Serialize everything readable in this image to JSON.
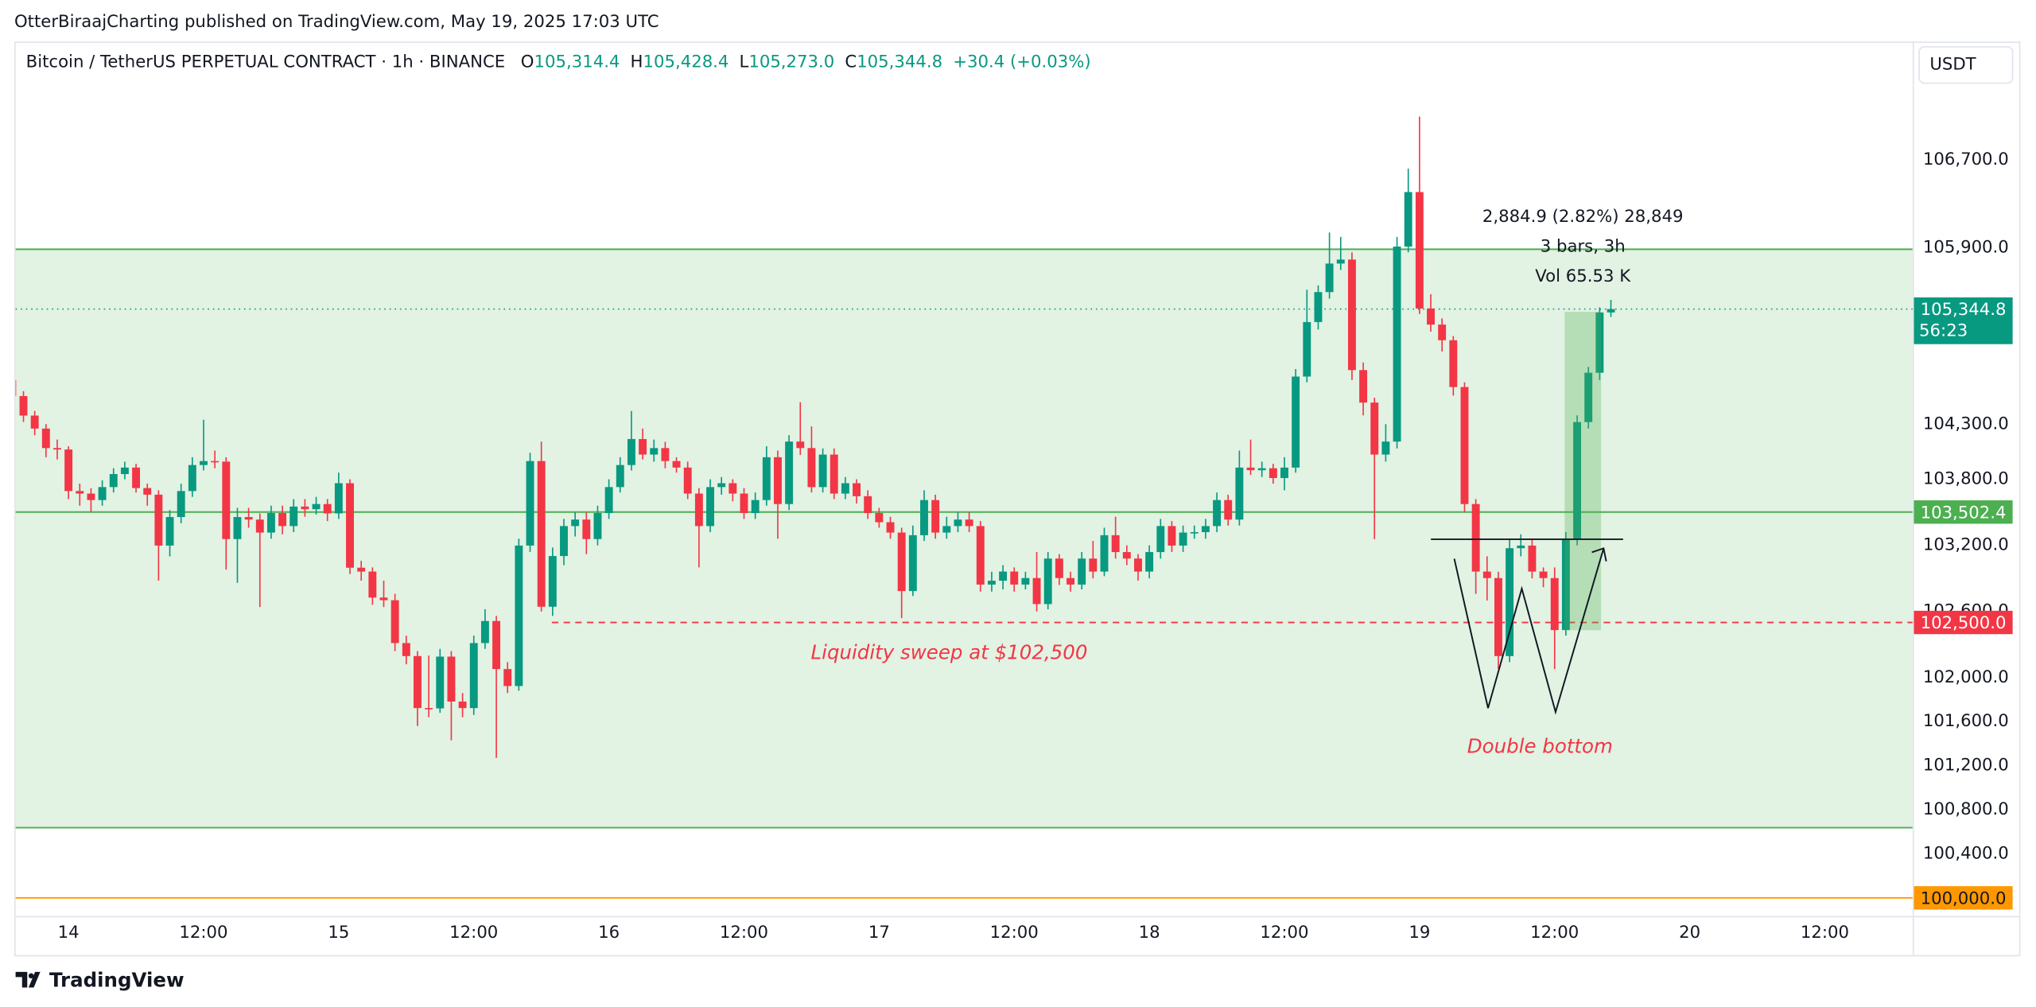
{
  "published": "OtterBiraajCharting published on TradingView.com, May 19, 2025 17:03 UTC",
  "brand": "TradingView",
  "chart_data": {
    "type": "candlestick",
    "title": "Bitcoin / TetherUS PERPETUAL CONTRACT · 1h · BINANCE",
    "ohlc": [
      {
        "key": "O",
        "value": "105,314.4"
      },
      {
        "key": "H",
        "value": "105,428.4"
      },
      {
        "key": "L",
        "value": "105,273.0"
      },
      {
        "key": "C",
        "value": "105,344.8"
      }
    ],
    "change": "+30.4 (+0.03%)",
    "currency": "USDT",
    "up_color": "#089981",
    "down_color": "#f23645",
    "xlim": [
      0.3,
      168.8
    ],
    "xticks": [
      {
        "value": 5,
        "label": "14"
      },
      {
        "value": 17,
        "label": "12:00"
      },
      {
        "value": 29,
        "label": "15"
      },
      {
        "value": 41,
        "label": "12:00"
      },
      {
        "value": 53,
        "label": "16"
      },
      {
        "value": 65,
        "label": "12:00"
      },
      {
        "value": 77,
        "label": "17"
      },
      {
        "value": 89,
        "label": "12:00"
      },
      {
        "value": 101,
        "label": "18"
      },
      {
        "value": 113,
        "label": "12:00"
      },
      {
        "value": 125,
        "label": "19"
      },
      {
        "value": 137,
        "label": "12:00"
      },
      {
        "value": 149,
        "label": "20"
      },
      {
        "value": 161,
        "label": "12:00"
      }
    ],
    "ylim": [
      99835,
      107773
    ],
    "yticks": [
      {
        "value": 100400,
        "label": "100,400.0"
      },
      {
        "value": 100800,
        "label": "100,800.0"
      },
      {
        "value": 101200,
        "label": "101,200.0"
      },
      {
        "value": 101600,
        "label": "101,600.0"
      },
      {
        "value": 102000,
        "label": "102,000.0"
      },
      {
        "value": 102600,
        "label": "102,600.0"
      },
      {
        "value": 103200,
        "label": "103,200.0"
      },
      {
        "value": 103800,
        "label": "103,800.0"
      },
      {
        "value": 104300,
        "label": "104,300.0"
      },
      {
        "value": 105900,
        "label": "105,900.0"
      },
      {
        "value": 106700,
        "label": "106,700.0"
      }
    ],
    "grid": false,
    "zone": [
      100637,
      105888
    ],
    "zone_color": "#4caf50",
    "levels": [
      {
        "value": 103502.4,
        "label": "103,502.4",
        "color": "#4caf50",
        "dashed": false
      },
      {
        "value": 102500,
        "label": "102,500.0",
        "color": "#f23645",
        "dashed": true
      },
      {
        "value": 100000,
        "label": "100,000.0",
        "color": "#ff9800",
        "dashed": false
      }
    ],
    "last_label": "105,344.8",
    "countdown": "56:23",
    "annotations": {
      "sweep": "Liquidity sweep at $102,500",
      "pattern": "Double bottom",
      "measure": "2,884.9 (2.82%) 28,849",
      "bars": "3 bars, 3h",
      "volume": "Vol 65.53 K"
    },
    "candles": [
      [
        104700,
        104780,
        104480,
        104555
      ],
      [
        104555,
        104600,
        104320,
        104378
      ],
      [
        104378,
        104420,
        104200,
        104260
      ],
      [
        104260,
        104300,
        104000,
        104083
      ],
      [
        104083,
        104160,
        103980,
        104070
      ],
      [
        104070,
        104100,
        103620,
        103693
      ],
      [
        103693,
        103760,
        103560,
        103670
      ],
      [
        103670,
        103720,
        103500,
        103611
      ],
      [
        103611,
        103790,
        103560,
        103729
      ],
      [
        103729,
        103900,
        103680,
        103847
      ],
      [
        103847,
        103960,
        103800,
        103906
      ],
      [
        103906,
        103940,
        103680,
        103720
      ],
      [
        103720,
        103760,
        103560,
        103660
      ],
      [
        103660,
        103700,
        102880,
        103198
      ],
      [
        103198,
        103520,
        103100,
        103457
      ],
      [
        103457,
        103760,
        103400,
        103693
      ],
      [
        103693,
        104000,
        103640,
        103929
      ],
      [
        103929,
        104340,
        103880,
        103965
      ],
      [
        103965,
        104060,
        103900,
        103960
      ],
      [
        103960,
        104000,
        102980,
        103257
      ],
      [
        103257,
        103540,
        102860,
        103457
      ],
      [
        103457,
        103540,
        103360,
        103434
      ],
      [
        103434,
        103490,
        102640,
        103316
      ],
      [
        103316,
        103560,
        103260,
        103493
      ],
      [
        103493,
        103560,
        103300,
        103375
      ],
      [
        103375,
        103620,
        103320,
        103552
      ],
      [
        103552,
        103620,
        103460,
        103528
      ],
      [
        103528,
        103640,
        103480,
        103575
      ],
      [
        103575,
        103620,
        103420,
        103490
      ],
      [
        103490,
        103860,
        103440,
        103764
      ],
      [
        103764,
        103800,
        102940,
        102997
      ],
      [
        102997,
        103060,
        102880,
        102962
      ],
      [
        102962,
        103000,
        102660,
        102726
      ],
      [
        102726,
        102880,
        102640,
        102702
      ],
      [
        102702,
        102760,
        102240,
        102313
      ],
      [
        102313,
        102380,
        102120,
        102195
      ],
      [
        102195,
        102240,
        101560,
        101723
      ],
      [
        101723,
        102200,
        101640,
        101720
      ],
      [
        101720,
        102260,
        101680,
        102190
      ],
      [
        102190,
        102240,
        101430,
        101782
      ],
      [
        101782,
        101860,
        101640,
        101723
      ],
      [
        101723,
        102380,
        101660,
        102313
      ],
      [
        102313,
        102620,
        102260,
        102513
      ],
      [
        102513,
        102560,
        101270,
        102077
      ],
      [
        102077,
        102140,
        101860,
        101923
      ],
      [
        101923,
        103260,
        101880,
        103198
      ],
      [
        103198,
        104040,
        103140,
        103965
      ],
      [
        103965,
        104142,
        102600,
        102643
      ],
      [
        102643,
        103180,
        102560,
        103103
      ],
      [
        103103,
        103440,
        103020,
        103375
      ],
      [
        103375,
        103500,
        103280,
        103434
      ],
      [
        103434,
        103500,
        103120,
        103257
      ],
      [
        103257,
        103560,
        103200,
        103493
      ],
      [
        103493,
        103800,
        103440,
        103729
      ],
      [
        103729,
        104000,
        103680,
        103929
      ],
      [
        103929,
        104420,
        103880,
        104165
      ],
      [
        104165,
        104260,
        103980,
        104024
      ],
      [
        104024,
        104160,
        103960,
        104083
      ],
      [
        104083,
        104140,
        103900,
        103965
      ],
      [
        103965,
        104000,
        103860,
        103906
      ],
      [
        103906,
        103960,
        103620,
        103670
      ],
      [
        103670,
        103720,
        103000,
        103375
      ],
      [
        103375,
        103800,
        103320,
        103729
      ],
      [
        103729,
        103820,
        103660,
        103764
      ],
      [
        103764,
        103800,
        103600,
        103670
      ],
      [
        103670,
        103720,
        103440,
        103493
      ],
      [
        103493,
        103680,
        103440,
        103611
      ],
      [
        103611,
        104100,
        103560,
        104000
      ],
      [
        104000,
        104060,
        103260,
        103575
      ],
      [
        103575,
        104200,
        103520,
        104142
      ],
      [
        104142,
        104500,
        104020,
        104083
      ],
      [
        104083,
        104280,
        103680,
        103729
      ],
      [
        103729,
        104080,
        103680,
        104024
      ],
      [
        104024,
        104080,
        103620,
        103670
      ],
      [
        103670,
        103820,
        103620,
        103764
      ],
      [
        103764,
        103800,
        103580,
        103646
      ],
      [
        103646,
        103700,
        103440,
        103493
      ],
      [
        103493,
        103540,
        103360,
        103410
      ],
      [
        103410,
        103460,
        103260,
        103316
      ],
      [
        103316,
        103360,
        102540,
        102785
      ],
      [
        102785,
        103380,
        102740,
        103292
      ],
      [
        103292,
        103700,
        103240,
        103611
      ],
      [
        103611,
        103660,
        103260,
        103316
      ],
      [
        103316,
        103460,
        103260,
        103375
      ],
      [
        103375,
        103500,
        103320,
        103434
      ],
      [
        103434,
        103500,
        103320,
        103375
      ],
      [
        103375,
        103420,
        102780,
        102844
      ],
      [
        102844,
        102960,
        102780,
        102879
      ],
      [
        102879,
        103020,
        102800,
        102962
      ],
      [
        102962,
        103000,
        102780,
        102844
      ],
      [
        102844,
        102960,
        102800,
        102903
      ],
      [
        102903,
        103140,
        102600,
        102667
      ],
      [
        102667,
        103140,
        102620,
        103080
      ],
      [
        103080,
        103120,
        102840,
        102903
      ],
      [
        102903,
        102960,
        102780,
        102844
      ],
      [
        102844,
        103140,
        102800,
        103080
      ],
      [
        103080,
        103240,
        102900,
        102962
      ],
      [
        102962,
        103360,
        102920,
        103292
      ],
      [
        103292,
        103460,
        103080,
        103139
      ],
      [
        103139,
        103200,
        103020,
        103080
      ],
      [
        103080,
        103120,
        102880,
        102962
      ],
      [
        102962,
        103200,
        102900,
        103139
      ],
      [
        103139,
        103440,
        103080,
        103375
      ],
      [
        103375,
        103420,
        103140,
        103198
      ],
      [
        103198,
        103380,
        103140,
        103316
      ],
      [
        103316,
        103380,
        103260,
        103320
      ],
      [
        103320,
        103440,
        103260,
        103375
      ],
      [
        103375,
        103680,
        103320,
        103611
      ],
      [
        103611,
        103660,
        103380,
        103434
      ],
      [
        103434,
        104060,
        103380,
        103906
      ],
      [
        103906,
        104160,
        103840,
        103882
      ],
      [
        103882,
        103960,
        103820,
        103900
      ],
      [
        103900,
        103940,
        103760,
        103811
      ],
      [
        103811,
        104000,
        103700,
        103906
      ],
      [
        103906,
        104800,
        103860,
        104732
      ],
      [
        104732,
        105520,
        104680,
        105227
      ],
      [
        105227,
        105560,
        105160,
        105499
      ],
      [
        105499,
        106040,
        105440,
        105758
      ],
      [
        105758,
        106000,
        105700,
        105794
      ],
      [
        105794,
        105860,
        104700,
        104791
      ],
      [
        104791,
        104860,
        104380,
        104496
      ],
      [
        104496,
        104540,
        103257,
        104024
      ],
      [
        104024,
        104300,
        103960,
        104142
      ],
      [
        104142,
        106000,
        104080,
        105912
      ],
      [
        105912,
        106620,
        105860,
        106407
      ],
      [
        106407,
        107092,
        105300,
        105350
      ],
      [
        105350,
        105480,
        105140,
        105204
      ],
      [
        105204,
        105260,
        104960,
        105062
      ],
      [
        105062,
        105100,
        104560,
        104637
      ],
      [
        104637,
        104680,
        103500,
        103575
      ],
      [
        103575,
        103620,
        102760,
        102962
      ],
      [
        102962,
        103100,
        102700,
        102903
      ],
      [
        102903,
        102960,
        102080,
        102195
      ],
      [
        102195,
        103260,
        102140,
        103174
      ],
      [
        103174,
        103300,
        103100,
        103198
      ],
      [
        103198,
        103260,
        102900,
        102962
      ],
      [
        102962,
        103000,
        102820,
        102903
      ],
      [
        102903,
        103000,
        102077,
        102431
      ],
      [
        102431,
        103320,
        102380,
        103257
      ],
      [
        103257,
        104380,
        103200,
        104319
      ],
      [
        104319,
        104820,
        104260,
        104767
      ],
      [
        104767,
        105360,
        104700,
        105314
      ],
      [
        105314.4,
        105428.4,
        105273.0,
        105344.8
      ]
    ]
  }
}
